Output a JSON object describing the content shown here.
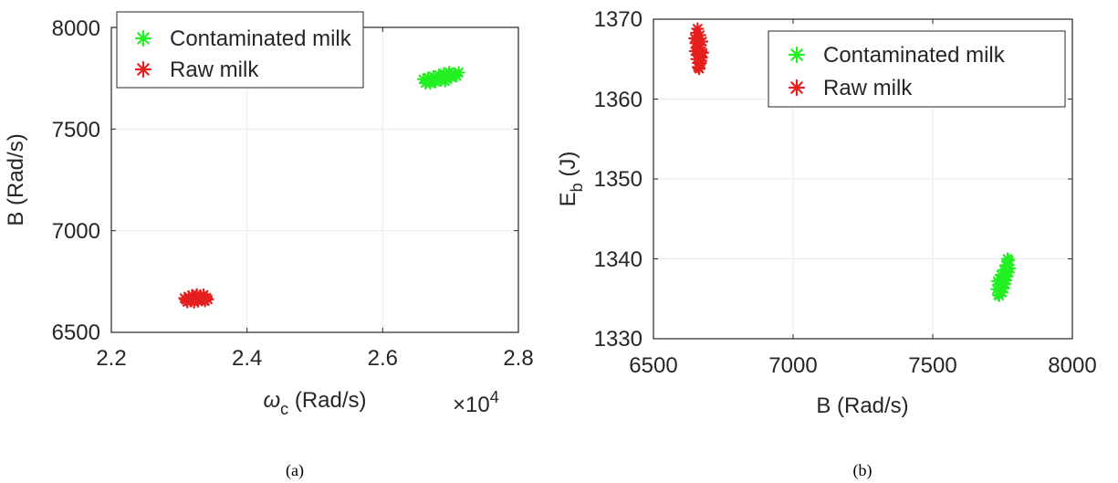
{
  "colors": {
    "contaminated": "#22f022",
    "raw": "#e51e1e",
    "grid": "#ebebeb",
    "axis": "#262626"
  },
  "chart_data": [
    {
      "type": "scatter",
      "panel_label": "(a)",
      "xlabel": {
        "main": "ω",
        "sub": "c",
        "rest": " (Rad/s)"
      },
      "ylabel": "B (Rad/s)",
      "x_multiplier": {
        "prefix": "×10",
        "exponent": "4"
      },
      "xlim": [
        2.2,
        2.8
      ],
      "ylim": [
        6500,
        8000
      ],
      "xticks": [
        2.2,
        2.4,
        2.6,
        2.8
      ],
      "xtick_labels": [
        "2.2",
        "2.4",
        "2.6",
        "2.8"
      ],
      "yticks": [
        6500,
        7000,
        7500,
        8000
      ],
      "ytick_labels": [
        "6500",
        "7000",
        "7500",
        "8000"
      ],
      "grid": true,
      "legend_position": "top-left",
      "marker": "asterisk",
      "series": [
        {
          "name": "Contaminated milk",
          "color": "#22f022",
          "points": [
            [
              2.665,
              7735
            ],
            [
              2.672,
              7742
            ],
            [
              2.68,
              7748
            ],
            [
              2.688,
              7755
            ],
            [
              2.695,
              7762
            ],
            [
              2.702,
              7770
            ],
            [
              2.67,
              7725
            ],
            [
              2.678,
              7732
            ],
            [
              2.686,
              7740
            ],
            [
              2.694,
              7747
            ],
            [
              2.701,
              7754
            ],
            [
              2.709,
              7761
            ],
            [
              2.66,
              7745
            ],
            [
              2.667,
              7752
            ],
            [
              2.675,
              7758
            ],
            [
              2.683,
              7766
            ],
            [
              2.69,
              7773
            ],
            [
              2.698,
              7780
            ],
            [
              2.676,
              7742
            ],
            [
              2.685,
              7753
            ],
            [
              2.692,
              7736
            ],
            [
              2.7,
              7758
            ],
            [
              2.706,
              7773
            ],
            [
              2.663,
              7726
            ],
            [
              2.712,
              7778
            ]
          ]
        },
        {
          "name": "Raw milk",
          "color": "#e51e1e",
          "points": [
            [
              2.31,
              6660
            ],
            [
              2.315,
              6667
            ],
            [
              2.32,
              6673
            ],
            [
              2.325,
              6678
            ],
            [
              2.33,
              6672
            ],
            [
              2.335,
              6665
            ],
            [
              2.34,
              6670
            ],
            [
              2.312,
              6650
            ],
            [
              2.318,
              6655
            ],
            [
              2.322,
              6648
            ],
            [
              2.328,
              6653
            ],
            [
              2.333,
              6660
            ],
            [
              2.338,
              6655
            ],
            [
              2.314,
              6675
            ],
            [
              2.319,
              6682
            ],
            [
              2.326,
              6686
            ],
            [
              2.331,
              6680
            ],
            [
              2.336,
              6684
            ],
            [
              2.323,
              6663
            ],
            [
              2.329,
              6666
            ],
            [
              2.308,
              6668
            ],
            [
              2.342,
              6662
            ]
          ]
        }
      ]
    },
    {
      "type": "scatter",
      "panel_label": "(b)",
      "xlabel": "B (Rad/s)",
      "ylabel": {
        "main": "E",
        "sub": "b",
        "rest": " (J)"
      },
      "xlim": [
        6500,
        8000
      ],
      "ylim": [
        1330,
        1370
      ],
      "xticks": [
        6500,
        7000,
        7500,
        8000
      ],
      "xtick_labels": [
        "6500",
        "7000",
        "7500",
        "8000"
      ],
      "yticks": [
        1330,
        1340,
        1350,
        1360,
        1370
      ],
      "ytick_labels": [
        "1330",
        "1340",
        "1350",
        "1360",
        "1370"
      ],
      "grid": true,
      "legend_position": "top-right",
      "marker": "asterisk",
      "series": [
        {
          "name": "Contaminated milk",
          "color": "#22f022",
          "points": [
            [
              7735,
              1335.5
            ],
            [
              7740,
              1336.0
            ],
            [
              7745,
              1336.5
            ],
            [
              7750,
              1337.0
            ],
            [
              7755,
              1337.5
            ],
            [
              7760,
              1338.0
            ],
            [
              7765,
              1338.6
            ],
            [
              7770,
              1339.2
            ],
            [
              7772,
              1339.8
            ],
            [
              7768,
              1340.0
            ],
            [
              7730,
              1336.2
            ],
            [
              7736,
              1336.8
            ],
            [
              7742,
              1337.4
            ],
            [
              7748,
              1335.8
            ],
            [
              7753,
              1336.3
            ],
            [
              7758,
              1336.9
            ],
            [
              7762,
              1337.3
            ],
            [
              7766,
              1337.8
            ],
            [
              7771,
              1338.3
            ],
            [
              7738,
              1335.4
            ],
            [
              7745,
              1338.0
            ],
            [
              7756,
              1338.6
            ],
            [
              7762,
              1339.2
            ],
            [
              7775,
              1338.8
            ],
            [
              7732,
              1337.2
            ]
          ]
        },
        {
          "name": "Raw milk",
          "color": "#e51e1e",
          "points": [
            [
              6655,
              1368.3
            ],
            [
              6660,
              1367.5
            ],
            [
              6665,
              1366.8
            ],
            [
              6670,
              1366.0
            ],
            [
              6672,
              1365.2
            ],
            [
              6668,
              1364.5
            ],
            [
              6660,
              1364.0
            ],
            [
              6655,
              1365.0
            ],
            [
              6650,
              1366.0
            ],
            [
              6652,
              1367.0
            ],
            [
              6658,
              1368.8
            ],
            [
              6666,
              1368.0
            ],
            [
              6674,
              1367.2
            ],
            [
              6662,
              1365.6
            ],
            [
              6656,
              1366.4
            ],
            [
              6670,
              1364.8
            ],
            [
              6664,
              1363.8
            ],
            [
              6648,
              1367.6
            ],
            [
              6676,
              1365.8
            ],
            [
              6661,
              1366.2
            ]
          ]
        }
      ]
    }
  ]
}
